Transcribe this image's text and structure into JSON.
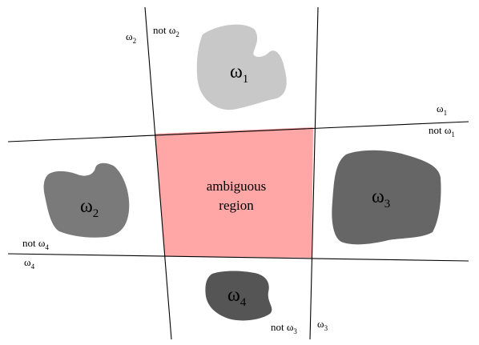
{
  "colors": {
    "background": "#ffffff",
    "line": "#000000",
    "ambiguous_fill": "#ffa6a6",
    "omega1_fill": "#c8c8c8",
    "omega2_fill": "#7a7a7a",
    "omega3_fill": "#666666",
    "omega4_fill": "#555555"
  },
  "regions": {
    "omega1": {
      "label": "ω",
      "sub": "1"
    },
    "omega2": {
      "label": "ω",
      "sub": "2"
    },
    "omega3": {
      "label": "ω",
      "sub": "3"
    },
    "omega4": {
      "label": "ω",
      "sub": "4"
    }
  },
  "ambiguous": {
    "line1": "ambiguous",
    "line2": "region"
  },
  "boundaries": {
    "b1": {
      "pos": {
        "label": "ω",
        "sub": "1"
      },
      "neg": {
        "label": "not ω",
        "sub": "1"
      }
    },
    "b2": {
      "pos": {
        "label": "ω",
        "sub": "2"
      },
      "neg": {
        "label": "not ω",
        "sub": "2"
      }
    },
    "b3": {
      "pos": {
        "label": "ω",
        "sub": "3"
      },
      "neg": {
        "label": "not ω",
        "sub": "3"
      }
    },
    "b4": {
      "pos": {
        "label": "not ω",
        "sub": "4"
      },
      "neg": {
        "label": "ω",
        "sub": "4"
      }
    }
  }
}
